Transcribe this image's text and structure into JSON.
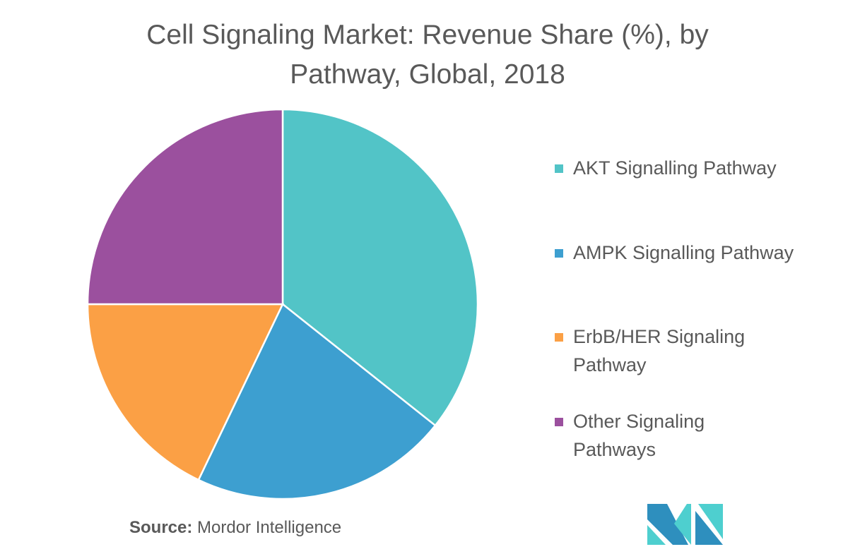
{
  "chart_data": {
    "type": "pie",
    "title": "Cell Signaling Market: Revenue Share (%), by Pathway, Global, 2018",
    "slices": [
      {
        "name": "AKT Signalling Pathway",
        "value": 35.7,
        "color": "#52C4C7"
      },
      {
        "name": "AMPK Signalling Pathway",
        "value": 21.4,
        "color": "#3D9FD0"
      },
      {
        "name": "ErbB/HER Signaling Pathway",
        "value": 17.9,
        "color": "#FBA045"
      },
      {
        "name": "Other Signaling Pathways",
        "value": 25.0,
        "color": "#9B509E"
      }
    ],
    "start_angle": "12 o'clock",
    "direction": "clockwise",
    "legend_position": "right"
  },
  "title_line1": "Cell Signaling Market: Revenue Share (%), by",
  "title_line2": "Pathway, Global, 2018",
  "source": {
    "label": "Source:",
    "text": " Mordor Intelligence"
  },
  "logo": {
    "text": "MI",
    "colors": [
      "#2E8FBE",
      "#4ECFCF"
    ]
  }
}
